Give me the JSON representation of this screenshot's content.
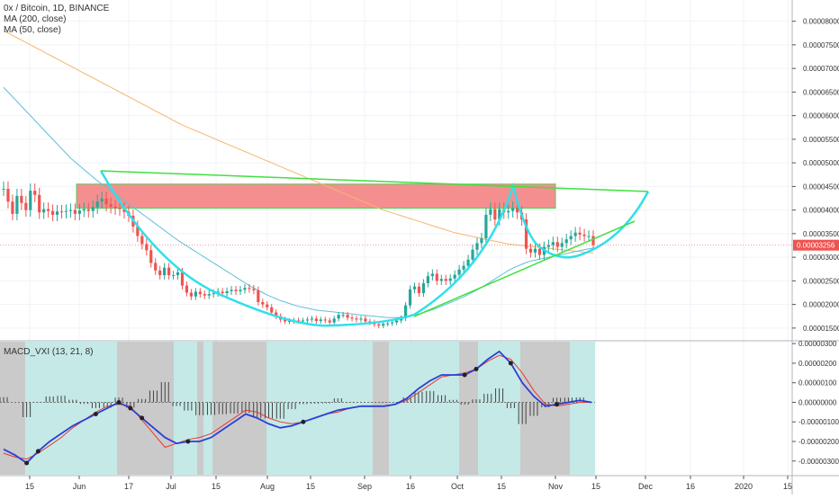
{
  "header": {
    "title": "0x / Bitcoin, 1D, BINANCE",
    "ma200_label": "MA (200, close)",
    "ma50_label": "MA (50, close)"
  },
  "indicator": {
    "label": "MACD_VXI (13, 21, 8)"
  },
  "colors": {
    "up": "#26a69a",
    "down": "#ef5350",
    "ma200": "#f7b66d",
    "ma50": "#5fc0d8",
    "cup": "#2fe0ea",
    "trendline": "#3fe03f",
    "resistance_zone": "#f47c7c",
    "price_tag": "#ef5350",
    "macd": "#2a3fd6",
    "signal": "#e53935",
    "shade_green": "#b7e3e0",
    "shade_gray": "#bdbdbd"
  },
  "chart_data": {
    "type": "candlestick",
    "symbol": "0x / Bitcoin",
    "interval": "1D",
    "exchange": "BINANCE",
    "last_price": "0.00003256",
    "price_axis_ticks": [
      "0.00008000",
      "0.00007500",
      "0.00007000",
      "0.00006500",
      "0.00006000",
      "0.00005500",
      "0.00005000",
      "0.00004500",
      "0.00004000",
      "0.00003500",
      "0.00003000",
      "0.00002500",
      "0.00002000",
      "0.00001500"
    ],
    "macd_axis_ticks": [
      "0.00000300",
      "0.00000200",
      "0.00000100",
      "0.00000000",
      "-0.00000100",
      "-0.00000200",
      "-0.00000300"
    ],
    "time_axis_ticks": [
      "15",
      "Jun",
      "17",
      "Jul",
      "15",
      "Aug",
      "15",
      "Sep",
      "16",
      "Oct",
      "15",
      "Nov",
      "15",
      "Dec",
      "16",
      "2020",
      "15"
    ],
    "price_range": [
      1.25e-05,
      8.45e-05
    ],
    "macd_range": [
      -3.7e-06,
      3.1e-06
    ],
    "dates": [
      "2019-05-09",
      "2020-01-15"
    ],
    "close": [
      4.45e-05,
      4.18e-05,
      3.92e-05,
      4.3e-05,
      4.15e-05,
      4e-05,
      4.41e-05,
      4.32e-05,
      3.95e-05,
      4.02e-05,
      3.98e-05,
      3.9e-05,
      3.97e-05,
      3.96e-05,
      3.98e-05,
      4e-05,
      3.92e-05,
      3.99e-05,
      4.02e-05,
      3.98e-05,
      4.06e-05,
      4.18e-05,
      4.24e-05,
      4.12e-05,
      4.07e-05,
      4.04e-05,
      4.02e-05,
      3.96e-05,
      3.88e-05,
      3.65e-05,
      3.45e-05,
      3.28e-05,
      3.15e-05,
      2.88e-05,
      2.72e-05,
      2.62e-05,
      2.78e-05,
      2.62e-05,
      2.62e-05,
      2.68e-05,
      2.4e-05,
      2.25e-05,
      2.17e-05,
      2.27e-05,
      2.22e-05,
      2.19e-05,
      2.22e-05,
      2.24e-05,
      2.27e-05,
      2.24e-05,
      2.28e-05,
      2.31e-05,
      2.28e-05,
      2.31e-05,
      2.35e-05,
      2.33e-05,
      2.3e-05,
      2.05e-05,
      2e-05,
      1.94e-05,
      1.83e-05,
      1.75e-05,
      1.68e-05,
      1.64e-05,
      1.65e-05,
      1.66e-05,
      1.65e-05,
      1.66e-05,
      1.68e-05,
      1.7e-05,
      1.65e-05,
      1.68e-05,
      1.66e-05,
      1.62e-05,
      1.7e-05,
      1.78e-05,
      1.78e-05,
      1.72e-05,
      1.7e-05,
      1.68e-05,
      1.7e-05,
      1.64e-05,
      1.62e-05,
      1.58e-05,
      1.55e-05,
      1.59e-05,
      1.6e-05,
      1.62e-05,
      1.66e-05,
      1.71e-05,
      1.98e-05,
      2.32e-05,
      2.38e-05,
      2.24e-05,
      2.45e-05,
      2.6e-05,
      2.65e-05,
      2.5e-05,
      2.54e-05,
      2.5e-05,
      2.55e-05,
      2.63e-05,
      2.74e-05,
      2.82e-05,
      2.95e-05,
      3.16e-05,
      3.3e-05,
      3.4e-05,
      3.9e-05,
      4.02e-05,
      3.8e-05,
      4.02e-05,
      3.95e-05,
      3.98e-05,
      4.04e-05,
      3.95e-05,
      3.8e-05,
      3.18e-05,
      3.1e-05,
      3.18e-05,
      3.05e-05,
      3.22e-05,
      3.26e-05,
      3.32e-05,
      3.22e-05,
      3.3e-05,
      3.38e-05,
      3.45e-05,
      3.52e-05,
      3.48e-05,
      3.45e-05,
      3.45e-05,
      3.26e-05
    ],
    "ma200": [
      7.8e-05,
      7.75e-05,
      7.7e-05,
      7.65e-05,
      7.6e-05,
      7.55e-05,
      7.5e-05,
      7.45e-05,
      7.4e-05,
      7.35e-05,
      7.3e-05,
      7.25e-05,
      7.2e-05,
      7.15e-05,
      7.1e-05,
      7.05e-05,
      7e-05,
      6.95e-05,
      6.9e-05,
      6.85e-05,
      6.8e-05,
      6.75e-05,
      6.7e-05,
      6.65e-05,
      6.6e-05,
      6.55e-05,
      6.5e-05,
      6.45e-05,
      6.4e-05,
      6.35e-05,
      6.3e-05,
      6.25e-05,
      6.2e-05,
      6.15e-05,
      6.1e-05,
      6.05e-05,
      6e-05,
      5.95e-05,
      5.9e-05,
      5.85e-05,
      5.8e-05,
      5.76e-05,
      5.72e-05,
      5.68e-05,
      5.64e-05,
      5.6e-05,
      5.56e-05,
      5.52e-05,
      5.48e-05,
      5.44e-05,
      5.4e-05,
      5.36e-05,
      5.32e-05,
      5.28e-05,
      5.24e-05,
      5.2e-05,
      5.16e-05,
      5.12e-05,
      5.08e-05,
      5.04e-05,
      5e-05,
      4.96e-05,
      4.92e-05,
      4.88e-05,
      4.84e-05,
      4.8e-05,
      4.76e-05,
      4.72e-05,
      4.68e-05,
      4.64e-05,
      4.6e-05,
      4.56e-05,
      4.52e-05,
      4.48e-05,
      4.44e-05,
      4.4e-05,
      4.36e-05,
      4.32e-05,
      4.28e-05,
      4.24e-05,
      4.2e-05,
      4.16e-05,
      4.12e-05,
      4.08e-05,
      4.04e-05,
      4e-05,
      3.97e-05,
      3.94e-05,
      3.91e-05,
      3.88e-05,
      3.85e-05,
      3.82e-05,
      3.79e-05,
      3.76e-05,
      3.73e-05,
      3.7e-05,
      3.67e-05,
      3.64e-05,
      3.61e-05,
      3.58e-05,
      3.55e-05,
      3.52e-05,
      3.5e-05,
      3.48e-05,
      3.46e-05,
      3.44e-05,
      3.42e-05,
      3.4e-05,
      3.38e-05,
      3.36e-05,
      3.34e-05,
      3.32e-05,
      3.3e-05,
      3.28e-05,
      3.27e-05,
      3.26e-05,
      3.25e-05,
      3.24e-05,
      3.23e-05,
      3.22e-05,
      3.21e-05,
      3.2e-05,
      3.19e-05,
      3.18e-05,
      3.17e-05,
      3.16e-05,
      3.15e-05,
      3.14e-05,
      3.13e-05,
      3.12e-05,
      3.11e-05,
      3.1e-05,
      3.09e-05
    ],
    "ma50": [
      6.6e-05,
      6.5e-05,
      6.4e-05,
      6.3e-05,
      6.2e-05,
      6.1e-05,
      6e-05,
      5.9e-05,
      5.8e-05,
      5.7e-05,
      5.6e-05,
      5.5e-05,
      5.4e-05,
      5.3e-05,
      5.2e-05,
      5.1e-05,
      5.02e-05,
      4.94e-05,
      4.86e-05,
      4.78e-05,
      4.7e-05,
      4.62e-05,
      4.55e-05,
      4.48e-05,
      4.41e-05,
      4.34e-05,
      4.27e-05,
      4.2e-05,
      4.13e-05,
      4.06e-05,
      3.99e-05,
      3.92e-05,
      3.85e-05,
      3.78e-05,
      3.71e-05,
      3.64e-05,
      3.57e-05,
      3.5e-05,
      3.43e-05,
      3.36e-05,
      3.3e-05,
      3.24e-05,
      3.18e-05,
      3.12e-05,
      3.06e-05,
      3e-05,
      2.94e-05,
      2.88e-05,
      2.82e-05,
      2.76e-05,
      2.7e-05,
      2.64e-05,
      2.58e-05,
      2.52e-05,
      2.46e-05,
      2.4e-05,
      2.35e-05,
      2.3e-05,
      2.25e-05,
      2.2e-05,
      2.16e-05,
      2.12e-05,
      2.08e-05,
      2.05e-05,
      2.02e-05,
      1.99e-05,
      1.96e-05,
      1.94e-05,
      1.92e-05,
      1.9e-05,
      1.88e-05,
      1.87e-05,
      1.86e-05,
      1.85e-05,
      1.84e-05,
      1.83e-05,
      1.82e-05,
      1.81e-05,
      1.8e-05,
      1.79e-05,
      1.78e-05,
      1.77e-05,
      1.76e-05,
      1.75e-05,
      1.74e-05,
      1.73e-05,
      1.72e-05,
      1.72e-05,
      1.72e-05,
      1.73e-05,
      1.74e-05,
      1.76e-05,
      1.78e-05,
      1.8e-05,
      1.83e-05,
      1.86e-05,
      1.89e-05,
      1.92e-05,
      1.96e-05,
      2e-05,
      2.04e-05,
      2.08e-05,
      2.12e-05,
      2.16e-05,
      2.21e-05,
      2.26e-05,
      2.31e-05,
      2.36e-05,
      2.42e-05,
      2.48e-05,
      2.54e-05,
      2.6e-05,
      2.66e-05,
      2.72e-05,
      2.77e-05,
      2.81e-05,
      2.85e-05,
      2.89e-05,
      2.92e-05,
      2.94e-05,
      2.96e-05,
      2.98e-05,
      3e-05,
      3.02e-05,
      3.04e-05,
      3.06e-05,
      3.08e-05,
      3.1e-05,
      3.12e-05,
      3.14e-05,
      3.16e-05,
      3.18e-05,
      3.19e-05
    ],
    "macd": [
      -2.4e-06,
      -2.7e-06,
      -3.1e-06,
      -2.5e-06,
      -2e-06,
      -1.6e-06,
      -1.2e-06,
      -9e-07,
      -6e-07,
      -3e-07,
      -0.0,
      -3e-07,
      -8e-07,
      -1.3e-06,
      -1.8e-06,
      -2.1e-06,
      -2e-06,
      -2e-06,
      -1.8e-06,
      -1.4e-06,
      -1e-06,
      -6e-07,
      -8e-07,
      -1.1e-06,
      -1.3e-06,
      -1.2e-06,
      -1e-06,
      -8e-07,
      -6e-07,
      -4e-07,
      -3e-07,
      -2e-07,
      -2e-07,
      -2e-07,
      -1e-07,
      2e-07,
      7e-07,
      1.1e-06,
      1.4e-06,
      1.4e-06,
      1.4e-06,
      1.7e-06,
      2.2e-06,
      2.6e-06,
      2e-06,
      1e-06,
      3e-07,
      -2e-07,
      -1e-07,
      0.0,
      1e-07,
      0.0
    ],
    "signal": [
      -2.6e-06,
      -2.8e-06,
      -2.9e-06,
      -2.6e-06,
      -2.2e-06,
      -1.8e-06,
      -1.3e-06,
      -9e-07,
      -5e-07,
      -2e-07,
      -1e-07,
      -2e-07,
      -9e-07,
      -1.6e-06,
      -2.3e-06,
      -2.1e-06,
      -1.9e-06,
      -1.8e-06,
      -1.6e-06,
      -1.2e-06,
      -8e-07,
      -4e-07,
      -5e-07,
      -8e-07,
      -1e-06,
      -1.1e-06,
      -1e-06,
      -8e-07,
      -6e-07,
      -5e-07,
      -3e-07,
      -2e-07,
      -2e-07,
      -2e-07,
      -1e-07,
      1e-07,
      5e-07,
      9e-07,
      1.3e-06,
      1.4e-06,
      1.5e-06,
      1.7e-06,
      2.1e-06,
      2.4e-06,
      2.2e-06,
      1.5e-06,
      6e-07,
      -1e-07,
      -2e-07,
      -1e-07,
      0.0,
      0.0
    ]
  }
}
